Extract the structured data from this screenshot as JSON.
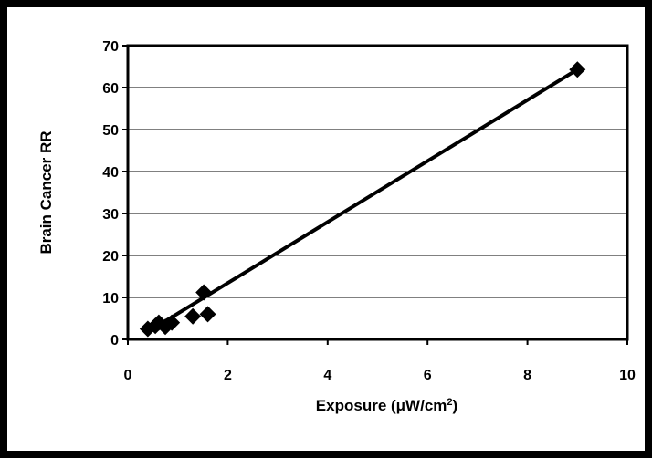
{
  "chart_data": {
    "type": "scatter",
    "title": "",
    "xlabel": "Exposure (μW/cm",
    "xlabel_superscript": "2",
    "xlabel_close": ")",
    "ylabel": "Brain Cancer RR",
    "xlim": [
      0,
      10
    ],
    "ylim": [
      0,
      70
    ],
    "xticks": [
      "0",
      "2",
      "4",
      "6",
      "8",
      "10"
    ],
    "yticks": [
      "0",
      "10",
      "20",
      "30",
      "40",
      "50",
      "60",
      "70"
    ],
    "grid": "horizontal",
    "legend": "none",
    "marker": "diamond",
    "series": [
      {
        "points": [
          {
            "x": 0.4,
            "y": 2.5
          },
          {
            "x": 0.55,
            "y": 3.2
          },
          {
            "x": 0.62,
            "y": 4.0
          },
          {
            "x": 0.75,
            "y": 3.0
          },
          {
            "x": 0.88,
            "y": 4.0
          },
          {
            "x": 1.3,
            "y": 5.5
          },
          {
            "x": 1.52,
            "y": 11.2
          },
          {
            "x": 1.6,
            "y": 6.0
          },
          {
            "x": 9.0,
            "y": 64.3
          }
        ]
      }
    ],
    "trendline": {
      "x": [
        0.4,
        9.0
      ],
      "y": [
        1.8,
        64.3
      ]
    },
    "colors": {
      "marker": "#000000",
      "line": "#000000",
      "grid": "#000000",
      "frame": "#000000"
    }
  }
}
